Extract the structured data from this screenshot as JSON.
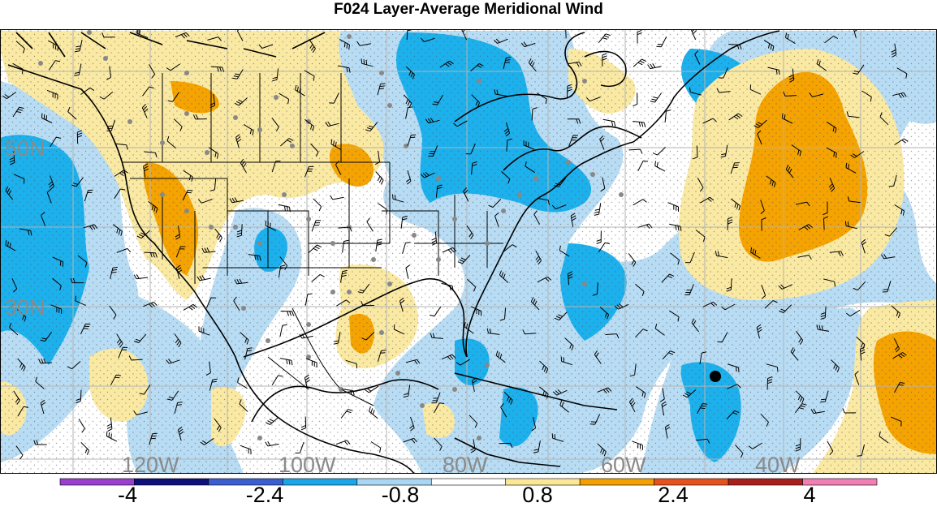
{
  "title": "F024 Layer-Average Meridional Wind",
  "lat_labels": [
    "50N",
    "30N"
  ],
  "lon_labels": [
    "120W",
    "100W",
    "80W",
    "60W",
    "40W"
  ],
  "colorbar": {
    "labels": [
      "-4",
      "-2.4",
      "-0.8",
      "0.8",
      "2.4",
      "4"
    ],
    "colors": [
      "#9b3fcf",
      "#10107a",
      "#3b5fcf",
      "#1aa6e8",
      "#a9d6f2",
      "#ffffff",
      "#fbe795",
      "#f3a000",
      "#e4531e",
      "#a8201c",
      "#f07fb4"
    ]
  },
  "palette": {
    "light_blue": "#b7dcf4",
    "blue": "#1cb0ec",
    "yellow": "#fae9a2",
    "orange": "#f5a300",
    "grid": "#b3b3b3",
    "coast": "#000000",
    "station": "#888888"
  },
  "markers": {
    "large_dot": "black-dot-marker"
  }
}
